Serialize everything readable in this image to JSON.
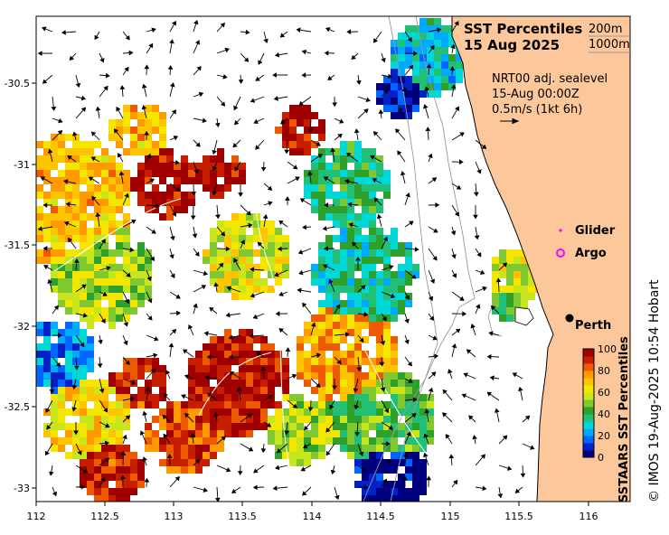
{
  "map": {
    "title_line1": "SST Percentiles",
    "title_line2": "15 Aug 2025",
    "isobath_labels": [
      "200m",
      "1000m"
    ],
    "sealevel_info": [
      "NRT00 adj. sealevel",
      "15-Aug 00:00Z",
      "0.5m/s (1kt 6h)"
    ],
    "legend": {
      "glider": "Glider",
      "argo": "Argo",
      "glider_color": "#ff00ff",
      "argo_color": "#ff00ff"
    },
    "city": "Perth",
    "x_ticks": [
      "112",
      "112.5",
      "113",
      "113.5",
      "114",
      "114.5",
      "115",
      "115.5",
      "116"
    ],
    "y_ticks": [
      "-30.5",
      "-31",
      "-31.5",
      "-32",
      "-32.5",
      "-33"
    ],
    "colorbar": {
      "label": "SSTAARS SST Percentiles",
      "ticks": [
        "100",
        "80",
        "60",
        "40",
        "20",
        "0"
      ],
      "colors": [
        "#00007f",
        "#0022c8",
        "#0066ff",
        "#00aaff",
        "#00d8d8",
        "#22c077",
        "#2ea02c",
        "#7fc830",
        "#c8e61e",
        "#f5e600",
        "#ffc400",
        "#ff9a00",
        "#ee5a00",
        "#c81e00",
        "#a00000"
      ]
    },
    "credit": "© IMOS 19-Aug-2025 10:54 Hobart",
    "land_color": "#fcc89b"
  }
}
